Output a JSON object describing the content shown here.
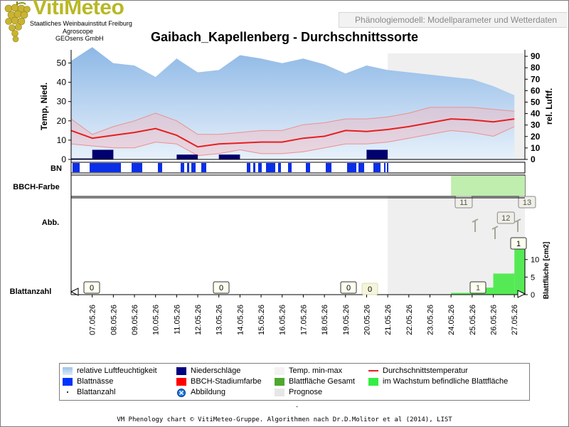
{
  "logo": {
    "name": "VitiMeteo",
    "line1": "Staatliches Weinbauinstitut Freiburg",
    "line2": "Agroscope",
    "line3": "GEOsens GmbH"
  },
  "header_tab": "Phänologiemodell: Modellparameter und Wetterdaten",
  "chart_title": "Gaibach_Kapellenberg - Durchschnittssorte",
  "chart_data": {
    "type": "line",
    "title": "Gaibach_Kapellenberg - Durchschnittssorte",
    "dates": [
      "07.05.26",
      "08.05.26",
      "09.05.26",
      "10.05.26",
      "11.05.26",
      "12.05.26",
      "13.05.26",
      "14.05.26",
      "15.05.26",
      "16.05.26",
      "17.05.26",
      "18.05.26",
      "19.05.26",
      "20.05.26",
      "21.05.26",
      "22.05.26",
      "23.05.26",
      "24.05.26",
      "25.05.26",
      "26.05.26",
      "27.05.26"
    ],
    "x_start": "06.05.26",
    "forecast_start": "21.05.26",
    "temp_axis": {
      "label": "Temp, Nied.",
      "ylim": [
        0,
        55
      ],
      "ticks": [
        0,
        10,
        20,
        30,
        40,
        50
      ]
    },
    "humidity_axis": {
      "label": "rel. Luftf.",
      "ylim": [
        0,
        100
      ],
      "ticks": [
        0,
        10,
        20,
        30,
        40,
        50,
        60,
        70,
        80,
        90
      ]
    },
    "series": [
      {
        "name": "relative Luftfeuchtigkeit",
        "color": "#9cc3ea",
        "axis": "humidity",
        "x": [
          "06.05.26",
          "07.05.26",
          "08.05.26",
          "09.05.26",
          "10.05.26",
          "11.05.26",
          "12.05.26",
          "13.05.26",
          "14.05.26",
          "15.05.26",
          "16.05.26",
          "17.05.26",
          "18.05.26",
          "19.05.26",
          "20.05.26",
          "21.05.26",
          "22.05.26",
          "23.05.26",
          "24.05.26",
          "25.05.26",
          "26.05.26",
          "27.05.26"
        ],
        "values": [
          86,
          98,
          84,
          82,
          72,
          88,
          76,
          78,
          91,
          88,
          84,
          88,
          83,
          75,
          82,
          78,
          76,
          74,
          72,
          70,
          64,
          56
        ]
      },
      {
        "name": "Temp. max",
        "color": "#e58a8a",
        "axis": "temp",
        "x": [
          "06.05.26",
          "07.05.26",
          "08.05.26",
          "09.05.26",
          "10.05.26",
          "11.05.26",
          "12.05.26",
          "13.05.26",
          "14.05.26",
          "15.05.26",
          "16.05.26",
          "17.05.26",
          "18.05.26",
          "19.05.26",
          "20.05.26",
          "21.05.26",
          "22.05.26",
          "23.05.26",
          "24.05.26",
          "25.05.26",
          "26.05.26",
          "27.05.26"
        ],
        "values": [
          21,
          13,
          17,
          20,
          24,
          20,
          13,
          13,
          14,
          15,
          15,
          18,
          19,
          21,
          21,
          22,
          24,
          27,
          27,
          27,
          26,
          25
        ]
      },
      {
        "name": "Durchschnittstemperatur",
        "color": "#e61f1f",
        "axis": "temp",
        "x": [
          "06.05.26",
          "07.05.26",
          "08.05.26",
          "09.05.26",
          "10.05.26",
          "11.05.26",
          "12.05.26",
          "13.05.26",
          "14.05.26",
          "15.05.26",
          "16.05.26",
          "17.05.26",
          "18.05.26",
          "19.05.26",
          "20.05.26",
          "21.05.26",
          "22.05.26",
          "23.05.26",
          "24.05.26",
          "25.05.26",
          "26.05.26",
          "27.05.26"
        ],
        "values": [
          15,
          11,
          12.5,
          14,
          16,
          12.5,
          6.5,
          8,
          8.5,
          9,
          9,
          11,
          12,
          15,
          14.5,
          15.5,
          17,
          19,
          21,
          20.5,
          19.5,
          21
        ]
      },
      {
        "name": "Temp. min",
        "color": "#e58a8a",
        "axis": "temp",
        "x": [
          "06.05.26",
          "07.05.26",
          "08.05.26",
          "09.05.26",
          "10.05.26",
          "11.05.26",
          "12.05.26",
          "13.05.26",
          "14.05.26",
          "15.05.26",
          "16.05.26",
          "17.05.26",
          "18.05.26",
          "19.05.26",
          "20.05.26",
          "21.05.26",
          "22.05.26",
          "23.05.26",
          "24.05.26",
          "25.05.26",
          "26.05.26",
          "27.05.26"
        ],
        "values": [
          8,
          7,
          6,
          6,
          9,
          8,
          2,
          3,
          5,
          3,
          3,
          4,
          6,
          8,
          8,
          9,
          11,
          13,
          15,
          14,
          12,
          17
        ]
      }
    ],
    "precipitation": [
      {
        "date": "07.05.26",
        "value": 0.5
      },
      {
        "date": "08.05.26",
        "value": 5
      },
      {
        "date": "12.05.26",
        "value": 2.5
      },
      {
        "date": "14.05.26",
        "value": 2.5
      },
      {
        "date": "21.05.26",
        "value": 5
      }
    ],
    "leaf_area_axis": {
      "label": "Blattfläche [cm2]",
      "ticks": [
        0,
        5,
        10
      ]
    },
    "leaf_area_values": [
      {
        "date": "25.05.26",
        "value": 0.5
      },
      {
        "date": "26.05.26",
        "value": 2
      },
      {
        "date": "27.05.26",
        "value": 6
      },
      {
        "date": "28.05.26",
        "value": 14
      }
    ],
    "bbch_labels": [
      "11",
      "12",
      "13"
    ],
    "leaf_count_labels": [
      "0",
      "0",
      "0",
      "0",
      "1",
      "1"
    ]
  },
  "row_labels": {
    "bn": "BN",
    "bbch": "BBCH-Farbe",
    "abb": "Abb.",
    "blattanzahl": "Blattanzahl"
  },
  "legend": {
    "items": [
      {
        "label": "relative Luftfeuchtigkeit",
        "color": "#9cc3ea"
      },
      {
        "label": "Niederschläge",
        "color": "#000080"
      },
      {
        "label": "Temp. min-max",
        "color": "#f2f2f2"
      },
      {
        "label": "Durchschnittstemperatur",
        "color": "#e61f1f"
      },
      {
        "label": "Blattnässe",
        "color": "#0033ff"
      },
      {
        "label": "BBCH-Stadiumfarbe",
        "color": "#ff0000"
      },
      {
        "label": "Blattfläche Gesamt",
        "color": "#4ea72e"
      },
      {
        "label": "im Wachstum befindliche Blattfläche",
        "color": "#33ee44"
      },
      {
        "label": "Blattanzahl",
        "color": "#333333"
      },
      {
        "label": "Abbildung",
        "color": "#0055cc"
      },
      {
        "label": "Prognose",
        "color": "#e6e6e6"
      }
    ]
  },
  "footer_dash": "-",
  "footer": "VM Phenology chart © VitiMeteo-Gruppe. Algorithmen nach Dr.D.Molitor et al (2014), LIST"
}
